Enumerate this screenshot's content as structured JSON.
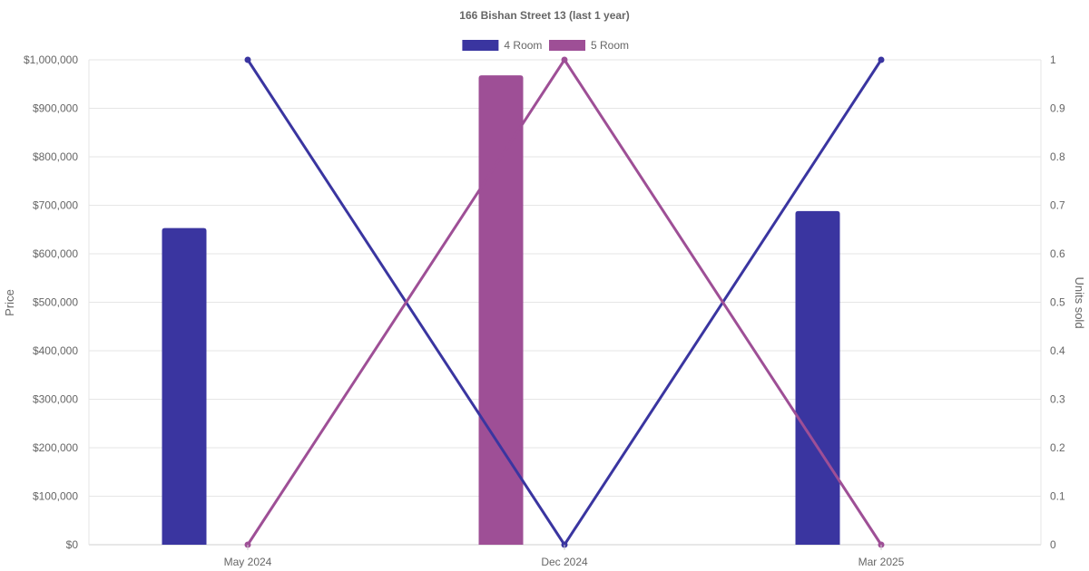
{
  "chart_data": {
    "type": "bar",
    "title": "166 Bishan Street 13 (last 1 year)",
    "categories": [
      "May 2024",
      "Dec 2024",
      "Mar 2025"
    ],
    "x_dates": [
      "2024-05",
      "2024-12",
      "2025-03"
    ],
    "ylabel_left": "Price",
    "ylabel_right": "Units sold",
    "ylim_left": [
      0,
      1000000
    ],
    "ylim_right": [
      0,
      1
    ],
    "yticks_left": [
      "$0",
      "$100,000",
      "$200,000",
      "$300,000",
      "$400,000",
      "$500,000",
      "$600,000",
      "$700,000",
      "$800,000",
      "$900,000",
      "$1,000,000"
    ],
    "yticks_right": [
      "0",
      "0.1",
      "0.2",
      "0.3",
      "0.4",
      "0.5",
      "0.6",
      "0.7",
      "0.8",
      "0.9",
      "1"
    ],
    "grid": true,
    "legend_position": "top-center",
    "series": [
      {
        "name": "4 Room",
        "color": "#3a35a0",
        "price": [
          653000,
          null,
          688000
        ],
        "units_sold": [
          1,
          0,
          1
        ]
      },
      {
        "name": "5 Room",
        "color": "#9e4f96",
        "price": [
          null,
          968000,
          null
        ],
        "units_sold": [
          0,
          1,
          0
        ]
      }
    ]
  }
}
